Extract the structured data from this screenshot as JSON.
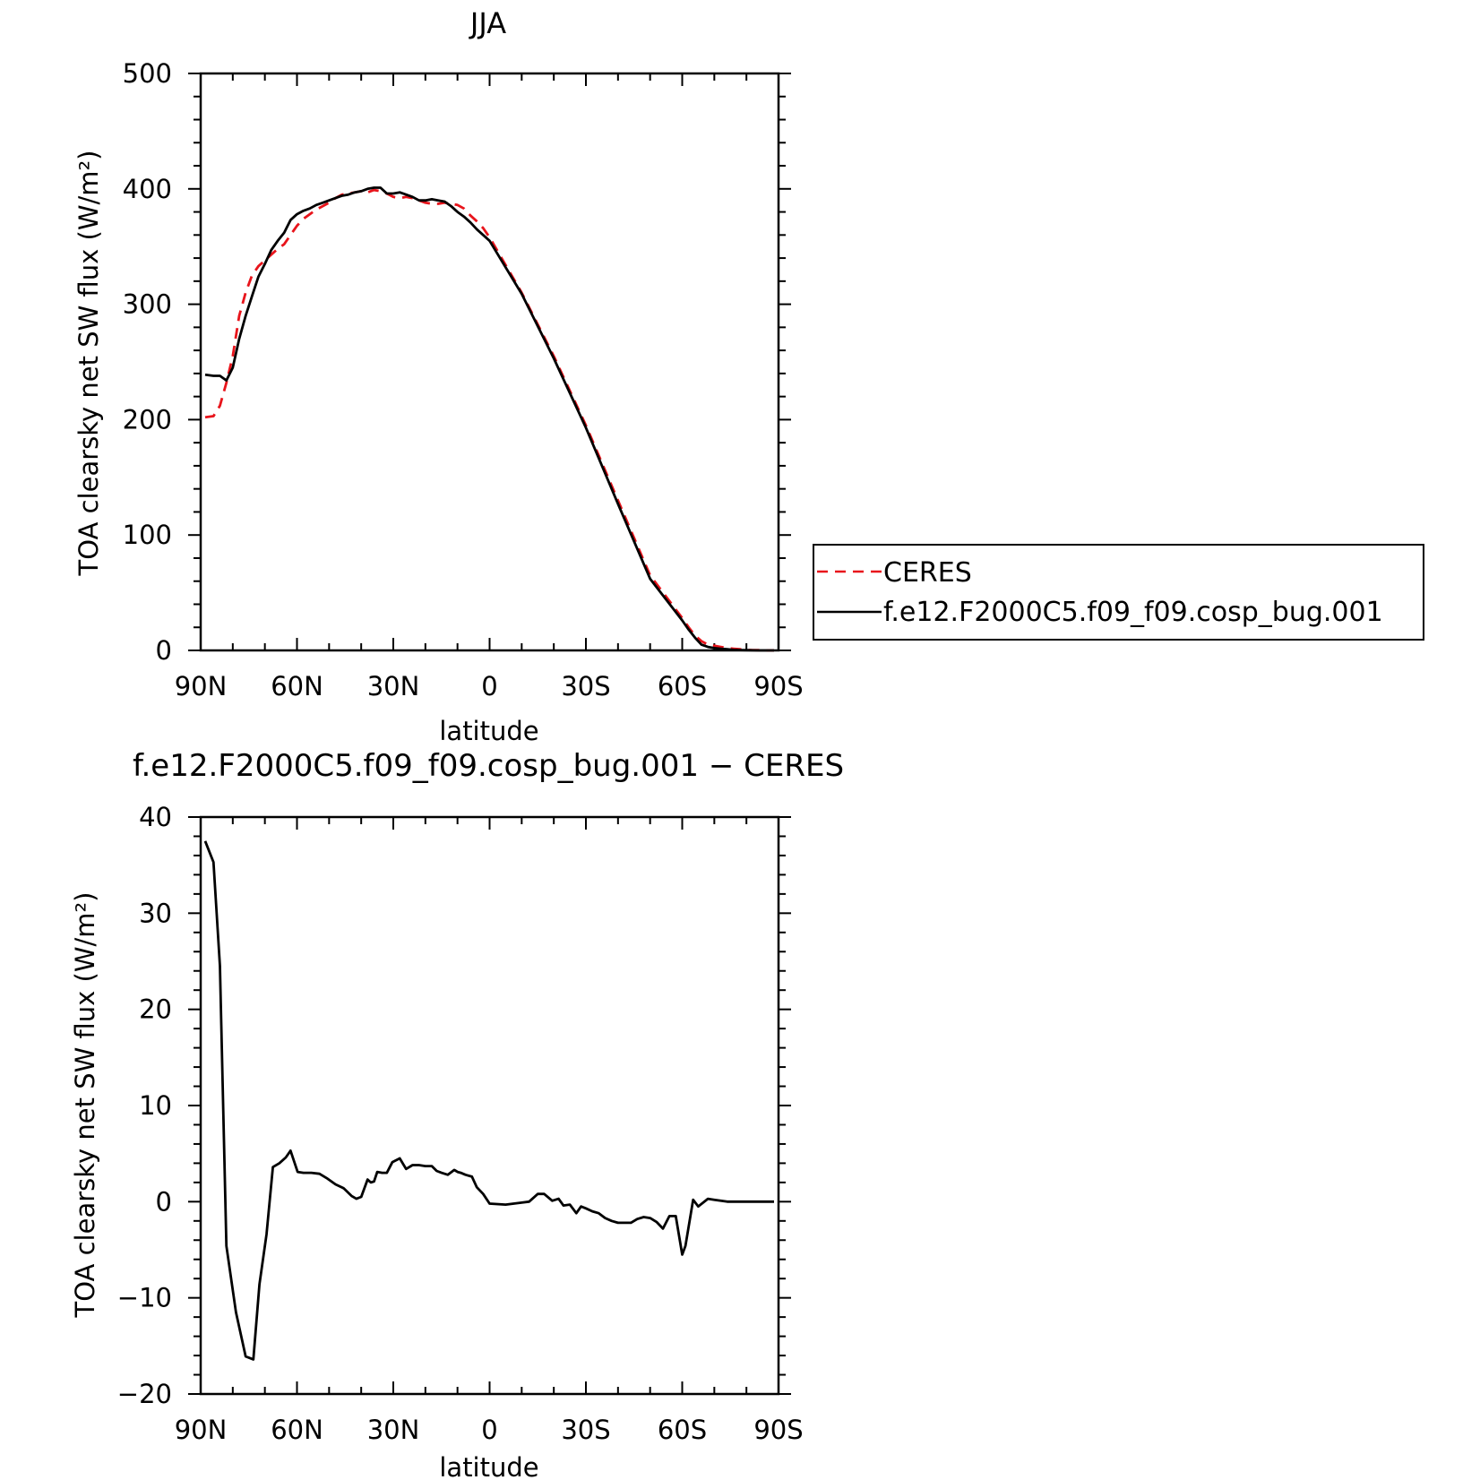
{
  "colors": {
    "ceres": "#e8141b",
    "model": "#000000",
    "axis": "#000000"
  },
  "chart_data": [
    {
      "type": "line",
      "title": "JJA",
      "xlabel": "latitude",
      "ylabel": "TOA clearsky net SW flux (W/m²)",
      "xlim": [
        90,
        -90
      ],
      "ylim": [
        0,
        500
      ],
      "x_ticks": [
        90,
        60,
        30,
        0,
        -30,
        -60,
        -90
      ],
      "x_tick_labels": [
        "90N",
        "60N",
        "30N",
        "0",
        "30S",
        "60S",
        "90S"
      ],
      "y_ticks": [
        0,
        100,
        200,
        300,
        400,
        500
      ],
      "y_tick_labels": [
        "0",
        "100",
        "200",
        "300",
        "400",
        "500"
      ],
      "legend": {
        "placement": "right",
        "entries": [
          "CERES",
          "f.e12.F2000C5.f09_f09.cosp_bug.001"
        ]
      },
      "series": [
        {
          "name": "CERES",
          "style": "dashed",
          "x": [
            88.6,
            86,
            84,
            82,
            80,
            78,
            76,
            74,
            72,
            70,
            68,
            66,
            64,
            62,
            60,
            58,
            56,
            54,
            52,
            50,
            48,
            46,
            44,
            42,
            40,
            38,
            36,
            34,
            32,
            30,
            28,
            26,
            24,
            22,
            20,
            18,
            16,
            14,
            12,
            10,
            8,
            6,
            4,
            2,
            0,
            -10,
            -20,
            -30,
            -40,
            -50,
            -60,
            -62,
            -64,
            -66,
            -68,
            -70,
            -72,
            -74,
            -76,
            -78,
            -80,
            -82,
            -84,
            -86,
            -88.6
          ],
          "y": [
            202,
            203,
            212,
            232,
            255,
            290,
            310,
            325,
            333,
            338,
            343,
            348,
            352,
            360,
            368,
            374,
            378,
            382,
            385,
            388,
            392,
            395,
            396,
            397,
            398,
            397,
            399,
            398,
            396,
            393,
            392,
            393,
            392,
            390,
            388,
            387,
            387,
            388,
            387,
            386,
            383,
            377,
            372,
            366,
            358,
            310,
            255,
            195,
            130,
            65,
            28,
            20,
            13,
            8,
            5,
            4,
            3,
            2,
            1.5,
            1,
            0.5,
            0.3,
            0.2,
            0,
            0
          ]
        },
        {
          "name": "f.e12.F2000C5.f09_f09.cosp_bug.001",
          "style": "solid",
          "x": [
            88.6,
            86,
            84,
            82,
            80,
            78,
            76,
            74,
            72,
            70,
            68,
            66,
            64,
            62,
            60,
            58,
            56,
            54,
            52,
            50,
            48,
            46,
            44,
            42,
            40,
            38,
            36,
            34,
            32,
            30,
            28,
            26,
            24,
            22,
            20,
            18,
            16,
            14,
            12,
            10,
            8,
            6,
            4,
            2,
            0,
            -10,
            -20,
            -30,
            -40,
            -50,
            -60,
            -62,
            -64,
            -66,
            -68,
            -70,
            -72,
            -74,
            -76,
            -78,
            -80,
            -82,
            -84,
            -86,
            -88.6
          ],
          "y": [
            239,
            238,
            238,
            234,
            245,
            270,
            290,
            307,
            324,
            335,
            347,
            355,
            362,
            373,
            378,
            381,
            383,
            386,
            388,
            390,
            392,
            394,
            395,
            397,
            398,
            400,
            401,
            401,
            396,
            396,
            397,
            395,
            393,
            390,
            390,
            391,
            390,
            389,
            385,
            380,
            376,
            371,
            365,
            360,
            355,
            309,
            253,
            193,
            127,
            62,
            26,
            18,
            11,
            5,
            3,
            2,
            1.5,
            1,
            0.5,
            0.3,
            0.2,
            0.1,
            0,
            0,
            0
          ]
        }
      ]
    },
    {
      "type": "line",
      "title": "f.e12.F2000C5.f09_f09.cosp_bug.001 − CERES",
      "xlabel": "latitude",
      "ylabel": "TOA clearsky net SW flux (W/m²)",
      "xlim": [
        90,
        -90
      ],
      "ylim": [
        -20,
        40
      ],
      "x_ticks": [
        90,
        60,
        30,
        0,
        -30,
        -60,
        -90
      ],
      "x_tick_labels": [
        "90N",
        "60N",
        "30N",
        "0",
        "30S",
        "60S",
        "90S"
      ],
      "y_ticks": [
        -20,
        -10,
        0,
        10,
        20,
        30,
        40
      ],
      "y_tick_labels": [
        "−20",
        "−10",
        "0",
        "10",
        "20",
        "30",
        "40"
      ],
      "series": [
        {
          "style": "solid",
          "x": [
            88.6,
            86,
            84,
            82,
            79,
            76,
            73.6,
            71.7,
            69.5,
            67.5,
            65.5,
            63.5,
            62,
            59.8,
            58,
            55.5,
            53,
            50.5,
            48,
            45.5,
            43,
            41.5,
            40,
            38,
            37,
            36,
            35,
            33.5,
            32,
            30.3,
            28,
            26,
            24,
            23.5,
            22,
            20,
            18,
            16.5,
            15,
            13,
            11,
            10,
            9,
            7.5,
            5.5,
            4,
            2,
            0,
            -5,
            -10,
            -12.3,
            -15,
            -17,
            -19.5,
            -21.5,
            -23,
            -25,
            -27,
            -28.5,
            -30,
            -32,
            -34,
            -36,
            -38,
            -40,
            -42,
            -44,
            -46,
            -48,
            -50,
            -52,
            -54,
            -56,
            -58,
            -60,
            -61,
            -63.4,
            -65,
            -68,
            -70,
            -72,
            -74,
            -80,
            -85,
            -88.6
          ],
          "y": [
            37.5,
            35.3,
            24.5,
            -4.6,
            -11.5,
            -16.1,
            -16.4,
            -8.6,
            -3.4,
            3.6,
            4.0,
            4.6,
            5.3,
            3.1,
            3.0,
            3.0,
            2.9,
            2.4,
            1.8,
            1.4,
            0.6,
            0.3,
            0.5,
            2.3,
            2.0,
            2.1,
            3.1,
            3.0,
            3.0,
            4.1,
            4.5,
            3.4,
            3.8,
            3.8,
            3.8,
            3.7,
            3.7,
            3.2,
            3.0,
            2.8,
            3.3,
            3.1,
            3.0,
            2.8,
            2.6,
            1.5,
            0.8,
            -0.2,
            -0.3,
            -0.1,
            0.0,
            0.8,
            0.8,
            0.1,
            0.3,
            -0.4,
            -0.3,
            -1.2,
            -0.5,
            -0.7,
            -1.0,
            -1.2,
            -1.7,
            -2.0,
            -2.2,
            -2.2,
            -2.2,
            -1.8,
            -1.6,
            -1.7,
            -2.1,
            -2.8,
            -1.5,
            -1.5,
            -5.5,
            -4.6,
            0.2,
            -0.5,
            0.3,
            0.2,
            0.1,
            0.0,
            0.0,
            0.0,
            0.0
          ]
        }
      ]
    }
  ]
}
